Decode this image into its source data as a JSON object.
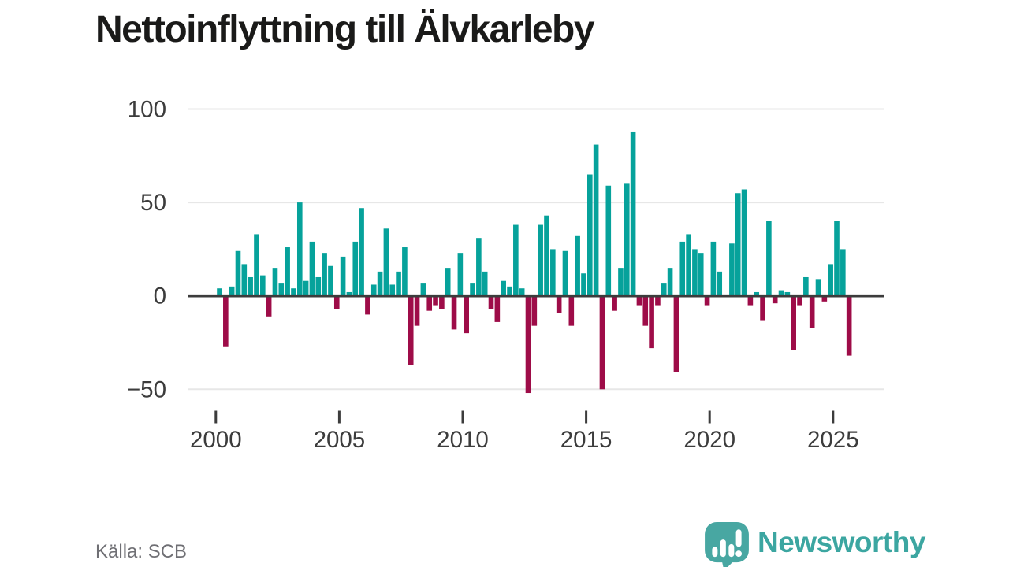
{
  "title": "Nettoinflyttning till Älvkarleby",
  "source": {
    "label": "Källa: SCB"
  },
  "branding": {
    "name": "Newsworthy",
    "icon": "speech-bubble-bar-chart-icon",
    "color": "#3ca6a1"
  },
  "chart_data": {
    "type": "bar",
    "title": "Nettoinflyttning till Älvkarleby",
    "frequency": "quarterly",
    "start": "2000 Q1",
    "end": "2025 Q3",
    "ylim": [
      -50,
      100
    ],
    "grid": true,
    "yticks": [
      {
        "value": 100,
        "label": "100"
      },
      {
        "value": 50,
        "label": "50"
      },
      {
        "value": 0,
        "label": "0"
      },
      {
        "value": -50,
        "label": "−50"
      }
    ],
    "xticks": [
      {
        "year": 2000,
        "label": "2000"
      },
      {
        "year": 2005,
        "label": "2005"
      },
      {
        "year": 2010,
        "label": "2010"
      },
      {
        "year": 2015,
        "label": "2015"
      },
      {
        "year": 2020,
        "label": "2020"
      },
      {
        "year": 2025,
        "label": "2025"
      }
    ],
    "colors": {
      "positive": "#06a29b",
      "negative": "#9e0c48",
      "axis": "#3c3c3c",
      "grid": "#e7e7e7",
      "labels": "#3c3c3c"
    },
    "values_by_year": {
      "2000": [
        4,
        -27,
        5,
        24
      ],
      "2001": [
        17,
        10,
        33,
        11
      ],
      "2002": [
        -11,
        15,
        7,
        26
      ],
      "2003": [
        4,
        50,
        8,
        29
      ],
      "2004": [
        10,
        23,
        16,
        -7
      ],
      "2005": [
        21,
        2,
        29,
        47
      ],
      "2006": [
        -10,
        6,
        13,
        36
      ],
      "2007": [
        6,
        13,
        26,
        -37
      ],
      "2008": [
        -16,
        7,
        -8,
        -5
      ],
      "2009": [
        -7,
        15,
        -18,
        23
      ],
      "2010": [
        -20,
        7,
        31,
        13
      ],
      "2011": [
        -7,
        -14,
        8,
        5
      ],
      "2012": [
        38,
        4,
        -52,
        -16
      ],
      "2013": [
        38,
        43,
        25,
        -9
      ],
      "2014": [
        24,
        -16,
        32,
        12
      ],
      "2015": [
        65,
        81,
        -50,
        59
      ],
      "2016": [
        -8,
        15,
        60,
        88
      ],
      "2017": [
        -5,
        -16,
        -28,
        -5
      ],
      "2018": [
        7,
        15,
        -41,
        29
      ],
      "2019": [
        33,
        25,
        23,
        -5
      ],
      "2020": [
        29,
        13,
        0,
        28
      ],
      "2021": [
        55,
        57,
        -5,
        2
      ],
      "2022": [
        -13,
        40,
        -4,
        3
      ],
      "2023": [
        2,
        -29,
        -5,
        10
      ],
      "2024": [
        -17,
        9,
        -3,
        17
      ],
      "2025": [
        40,
        25,
        -32
      ]
    }
  }
}
